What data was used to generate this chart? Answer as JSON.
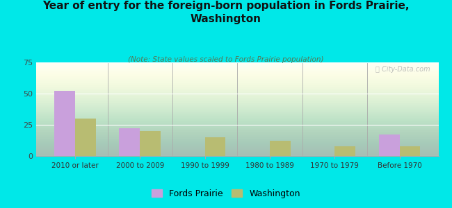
{
  "title": "Year of entry for the foreign-born population in Fords Prairie,\nWashington",
  "subtitle": "(Note: State values scaled to Fords Prairie population)",
  "categories": [
    "2010 or later",
    "2000 to 2009",
    "1990 to 1999",
    "1980 to 1989",
    "1970 to 1979",
    "Before 1970"
  ],
  "fords_prairie": [
    52,
    22,
    0,
    0,
    0,
    17
  ],
  "washington": [
    30,
    20,
    15,
    12,
    8,
    8
  ],
  "fords_color": "#c9a0dc",
  "washington_color": "#b8bc72",
  "background_color": "#00e8e8",
  "ylim": [
    0,
    75
  ],
  "yticks": [
    0,
    25,
    50,
    75
  ],
  "bar_width": 0.32,
  "legend_labels": [
    "Fords Prairie",
    "Washington"
  ],
  "watermark": "ⓘ City-Data.com"
}
